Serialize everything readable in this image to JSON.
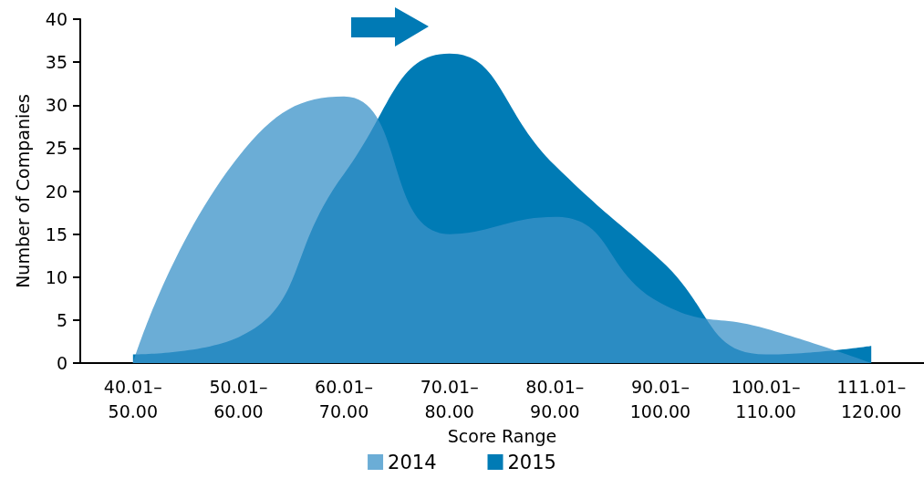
{
  "chart_data": {
    "type": "area",
    "xlabel": "Score Range",
    "ylabel": "Number of Companies",
    "categories": [
      "40.01–50.00",
      "50.01–60.00",
      "60.01–70.00",
      "70.01–80.00",
      "80.01–90.00",
      "90.01–100.00",
      "100.01–110.00",
      "111.01–120.00"
    ],
    "series": [
      {
        "name": "2014",
        "color": "#6badd6",
        "values": [
          0,
          24,
          31,
          15,
          17,
          7,
          4,
          0
        ]
      },
      {
        "name": "2015",
        "color": "#007bb5",
        "values": [
          1,
          3,
          22,
          36,
          23,
          12,
          1,
          2
        ]
      }
    ],
    "ylim": [
      0,
      40
    ],
    "yticks": [
      0,
      5,
      10,
      15,
      20,
      25,
      30,
      35,
      40
    ],
    "legend": "bottom"
  }
}
